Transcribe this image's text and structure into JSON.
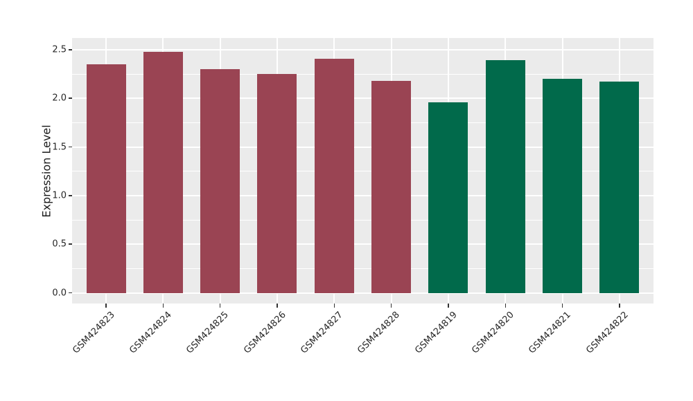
{
  "figure": {
    "background": "#FFFFFF",
    "panel_background": "#EBEBEB",
    "grid_major_color": "#FFFFFF",
    "grid_minor_color": "#FFFFFF",
    "tick_mark_color": "#333333",
    "tick_label_color": "#262626",
    "axis_title_color": "#1A1A1A"
  },
  "chart_data": {
    "type": "bar",
    "title": "",
    "xlabel": "",
    "ylabel": "Expression Level",
    "categories": [
      "GSM424823",
      "GSM424824",
      "GSM424825",
      "GSM424826",
      "GSM424827",
      "GSM424828",
      "GSM424819",
      "GSM424820",
      "GSM424821",
      "GSM424822"
    ],
    "values": [
      2.35,
      2.48,
      2.3,
      2.25,
      2.41,
      2.18,
      1.96,
      2.39,
      2.2,
      2.17
    ],
    "bar_colors": [
      "#9A4453",
      "#9A4453",
      "#9A4453",
      "#9A4453",
      "#9A4453",
      "#9A4453",
      "#016A4B",
      "#016A4B",
      "#016A4B",
      "#016A4B"
    ],
    "palette": {
      "maroon": "#9A4453",
      "green": "#016A4B"
    },
    "y_ticks": [
      "0.0",
      "0.5",
      "1.0",
      "1.5",
      "2.0",
      "2.5"
    ],
    "y_minor_ticks": [
      0.25,
      0.75,
      1.25,
      1.75,
      2.25
    ],
    "ylim": [
      -0.11,
      2.62
    ],
    "x_tick_angle": 45,
    "grid": "horizontal major+minor white lines, vertical white lines at category centers",
    "legend": "none"
  }
}
